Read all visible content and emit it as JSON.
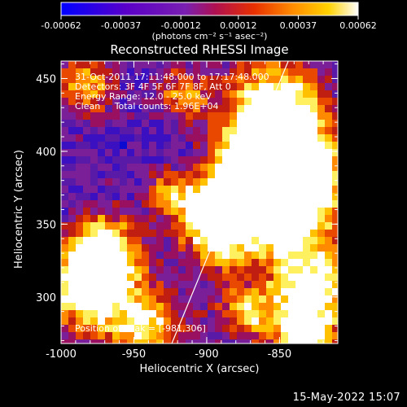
{
  "colorbar": {
    "tick_labels": [
      "-0.00062",
      "-0.00037",
      "-0.00012",
      "0.00012",
      "0.00037",
      "0.00062"
    ],
    "unit_label": "(photons cm⁻² s⁻¹ asec⁻²)",
    "colors": [
      "#0000ff",
      "#5a00c8",
      "#7a1fb0",
      "#b01050",
      "#e83000",
      "#ff8c00",
      "#ffd200",
      "#ffffff"
    ]
  },
  "plot": {
    "title": "Reconstructed RHESSI Image",
    "info_lines": [
      "31-Oct-2011 17:11:48.000 to 17:17:48.000",
      "Detectors: 3F 4F 5F 6F 7F 8F, Att 0",
      "Energy Range: 12.0 - 25.0 keV",
      "Clean     Total counts: 1.96E+04"
    ],
    "peak_label": "Position of Peak = [-981,306]",
    "timestamp": "15-May-2022 15:07"
  },
  "chart_data": {
    "type": "heatmap",
    "title": "Reconstructed RHESSI Image",
    "xlabel": "Heliocentric X (arcsec)",
    "ylabel": "Heliocentric Y (arcsec)",
    "xlim": [
      -1000,
      -810
    ],
    "ylim": [
      268,
      462
    ],
    "x_ticks": [
      -1000,
      -950,
      -900,
      -850
    ],
    "y_ticks": [
      300,
      350,
      400,
      450
    ],
    "x_tick_labels": [
      "-1000",
      "-950",
      "-900",
      "-850"
    ],
    "y_tick_labels": [
      "300",
      "350",
      "400",
      "450"
    ],
    "colorbar_range": [
      -0.00062,
      0.00062
    ],
    "limb_line": [
      [
        -924,
        268
      ],
      [
        -844,
        462
      ]
    ],
    "peak_position": [
      -981,
      306
    ]
  }
}
